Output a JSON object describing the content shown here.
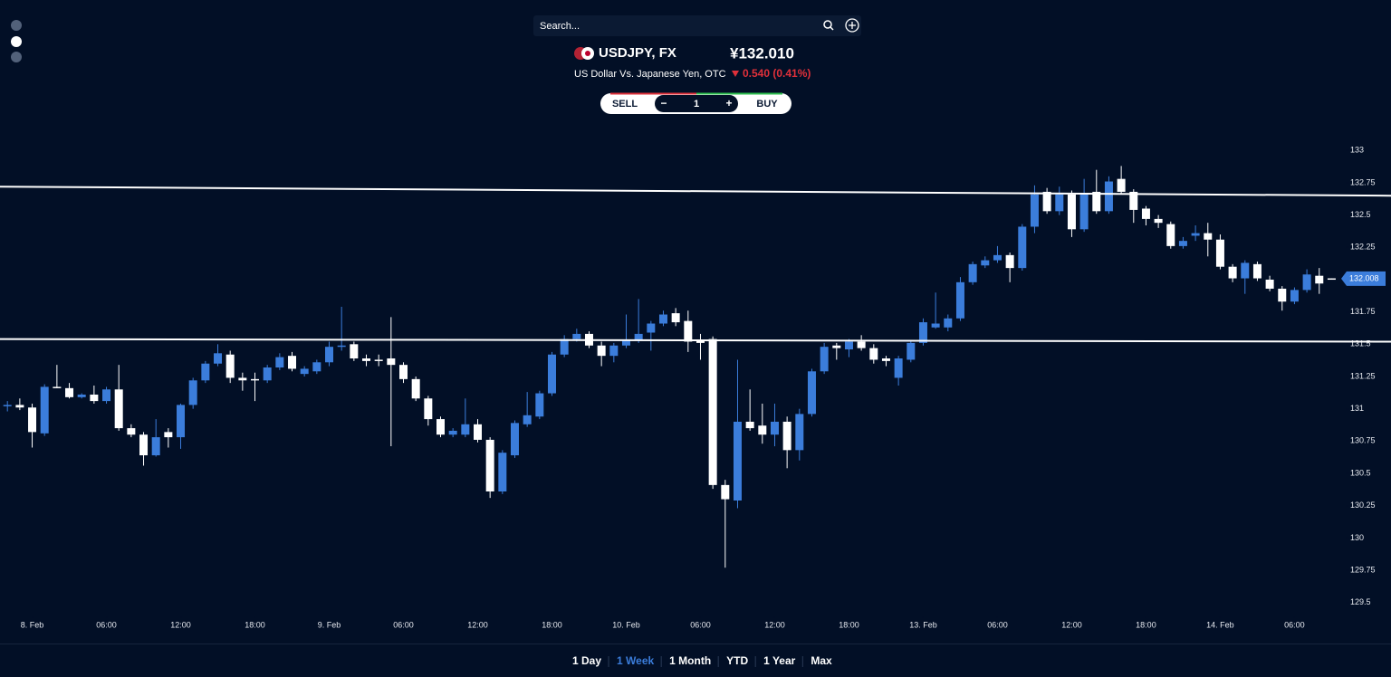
{
  "header": {
    "search_placeholder": "Search...",
    "symbol": "USDJPY, FX",
    "price": "¥132.010",
    "description": "US Dollar Vs. Japanese Yen, OTC",
    "change": "0.540 (0.41%)"
  },
  "trade": {
    "sell": "SELL",
    "minus": "−",
    "quantity": "1",
    "plus": "+",
    "buy": "BUY"
  },
  "ranges": {
    "items": [
      "1 Day",
      "1 Week",
      "1 Month",
      "YTD",
      "1 Year",
      "Max"
    ],
    "active": 1
  },
  "chart_data": {
    "type": "candlestick",
    "x": [
      -2,
      -1,
      0,
      1,
      2,
      3,
      4,
      5,
      6,
      7,
      8,
      9,
      10,
      11,
      12,
      13,
      14,
      15,
      16,
      17,
      18,
      19,
      20,
      21,
      22,
      23,
      24,
      25,
      26,
      27,
      28,
      29,
      30,
      31,
      32,
      33,
      34,
      35,
      36,
      37,
      38,
      39,
      40,
      41,
      42,
      43,
      44,
      45,
      46,
      47,
      48,
      49,
      50,
      51,
      52,
      53,
      54,
      55,
      56,
      57,
      58,
      59,
      60,
      61,
      62,
      63,
      64,
      65,
      66,
      67,
      68,
      69,
      70,
      71,
      72,
      73,
      74,
      75,
      76,
      77,
      78,
      79,
      80,
      81,
      82,
      83,
      84,
      85,
      86,
      87,
      88,
      89,
      90,
      91,
      92,
      93,
      94,
      95,
      96,
      97,
      98,
      99,
      100,
      101,
      102,
      103,
      104,
      105
    ],
    "open": [
      131.02,
      131.03,
      131.01,
      130.81,
      131.17,
      131.16,
      131.09,
      131.11,
      131.06,
      131.15,
      130.85,
      130.8,
      130.64,
      130.82,
      130.78,
      131.03,
      131.22,
      131.35,
      131.42,
      131.24,
      131.23,
      131.22,
      131.32,
      131.41,
      131.27,
      131.29,
      131.36,
      131.48,
      131.5,
      131.39,
      131.38,
      131.39,
      131.34,
      131.23,
      131.08,
      130.92,
      130.8,
      130.8,
      130.88,
      130.76,
      130.36,
      130.64,
      130.88,
      130.94,
      131.12,
      131.42,
      131.54,
      131.58,
      131.49,
      131.41,
      131.49,
      131.53,
      131.59,
      131.66,
      131.74,
      131.68,
      131.53,
      131.54,
      130.41,
      130.29,
      130.9,
      130.87,
      130.8,
      130.9,
      130.68,
      130.96,
      131.29,
      131.49,
      131.46,
      131.52,
      131.47,
      131.39,
      131.24,
      131.38,
      131.51,
      131.63,
      131.63,
      131.7,
      131.98,
      132.11,
      132.15,
      132.19,
      132.09,
      132.41,
      132.68,
      132.53,
      132.66,
      132.39,
      132.68,
      132.53,
      132.78,
      132.68,
      132.55,
      132.47,
      132.43,
      132.26,
      132.34,
      132.36,
      132.31,
      132.1,
      132.01,
      132.12,
      132.0,
      131.93,
      131.83,
      131.92,
      132.03,
      132.01
    ],
    "high": [
      131.06,
      131.08,
      131.04,
      131.19,
      131.34,
      131.2,
      131.12,
      131.18,
      131.17,
      131.34,
      130.88,
      130.82,
      130.92,
      130.85,
      131.04,
      131.24,
      131.37,
      131.5,
      131.45,
      131.28,
      131.28,
      131.34,
      131.43,
      131.44,
      131.33,
      131.38,
      131.52,
      131.79,
      131.52,
      131.42,
      131.42,
      131.71,
      131.36,
      131.25,
      131.1,
      130.94,
      130.85,
      131.08,
      130.92,
      130.78,
      130.68,
      130.91,
      131.13,
      131.14,
      131.44,
      131.57,
      131.62,
      131.6,
      131.52,
      131.51,
      131.73,
      131.85,
      131.68,
      131.76,
      131.78,
      131.76,
      131.58,
      131.56,
      130.45,
      131.38,
      131.15,
      131.04,
      131.04,
      130.94,
      131.0,
      131.31,
      131.51,
      131.51,
      131.54,
      131.57,
      131.5,
      131.41,
      131.41,
      131.53,
      131.7,
      131.9,
      131.73,
      132.02,
      132.14,
      132.18,
      132.26,
      132.21,
      132.43,
      132.73,
      132.71,
      132.72,
      132.69,
      132.78,
      132.85,
      132.8,
      132.88,
      132.7,
      132.57,
      132.5,
      132.45,
      132.33,
      132.42,
      132.44,
      132.35,
      132.12,
      132.15,
      132.14,
      132.03,
      131.95,
      131.94,
      132.08,
      132.09,
      132.01
    ],
    "low": [
      130.98,
      130.99,
      130.7,
      130.79,
      131.16,
      131.08,
      131.08,
      131.04,
      131.04,
      130.83,
      130.78,
      130.56,
      130.63,
      130.7,
      130.69,
      131.0,
      131.2,
      131.33,
      131.2,
      131.14,
      131.06,
      131.2,
      131.3,
      131.29,
      131.25,
      131.27,
      131.33,
      131.45,
      131.37,
      131.33,
      131.33,
      130.71,
      131.2,
      131.06,
      130.87,
      130.78,
      130.78,
      130.78,
      130.74,
      130.31,
      130.34,
      130.62,
      130.86,
      130.92,
      131.1,
      131.4,
      131.52,
      131.47,
      131.33,
      131.36,
      131.47,
      131.51,
      131.45,
      131.64,
      131.64,
      131.44,
      131.38,
      130.38,
      129.77,
      130.23,
      130.83,
      130.73,
      130.71,
      130.54,
      130.6,
      130.94,
      131.27,
      131.38,
      131.4,
      131.45,
      131.35,
      131.33,
      131.18,
      131.36,
      131.49,
      131.62,
      131.6,
      131.68,
      131.96,
      132.09,
      132.13,
      131.98,
      132.07,
      132.36,
      132.51,
      132.5,
      132.33,
      132.37,
      132.51,
      132.51,
      132.66,
      132.44,
      132.42,
      132.4,
      132.24,
      132.24,
      132.3,
      132.18,
      132.08,
      131.98,
      131.89,
      131.99,
      131.91,
      131.76,
      131.81,
      131.9,
      131.89,
      132.0
    ],
    "close": [
      131.03,
      131.01,
      130.82,
      131.17,
      131.16,
      131.09,
      131.11,
      131.06,
      131.15,
      130.85,
      130.8,
      130.64,
      130.78,
      130.78,
      131.03,
      131.22,
      131.35,
      131.43,
      131.24,
      131.22,
      131.22,
      131.32,
      131.4,
      131.31,
      131.31,
      131.36,
      131.48,
      131.49,
      131.39,
      131.37,
      131.37,
      131.34,
      131.23,
      131.08,
      130.92,
      130.8,
      130.83,
      130.88,
      130.76,
      130.36,
      130.66,
      130.89,
      130.95,
      131.12,
      131.42,
      131.54,
      131.58,
      131.49,
      131.41,
      131.49,
      131.53,
      131.58,
      131.66,
      131.73,
      131.67,
      131.52,
      131.51,
      130.41,
      130.3,
      130.9,
      130.85,
      130.8,
      130.9,
      130.68,
      130.96,
      131.29,
      131.48,
      131.47,
      131.52,
      131.47,
      131.38,
      131.37,
      131.39,
      131.51,
      131.67,
      131.66,
      131.7,
      131.98,
      132.12,
      132.15,
      132.19,
      132.09,
      132.41,
      132.66,
      132.53,
      132.66,
      132.39,
      132.66,
      132.53,
      132.76,
      132.68,
      132.54,
      132.47,
      132.44,
      132.26,
      132.3,
      132.36,
      132.31,
      132.1,
      132.01,
      132.13,
      132.01,
      131.93,
      131.83,
      131.92,
      132.04,
      131.97,
      132.008
    ],
    "up_color": "#3b7ddb",
    "down_color": "#ffffff",
    "last_price": 132.008,
    "trendlines": [
      {
        "x": [
          -2.6,
          109.8
        ],
        "y": [
          132.72,
          132.65
        ]
      },
      {
        "x": [
          -2.6,
          109.8
        ],
        "y": [
          131.54,
          131.52
        ]
      }
    ],
    "xlim": [
      -2.6,
      105.7
    ],
    "ylim": [
      129.4,
      133.1
    ],
    "yticks": [
      129.5,
      129.75,
      130,
      130.25,
      130.5,
      130.75,
      131,
      131.25,
      131.5,
      131.75,
      132,
      132.25,
      132.5,
      132.75,
      133
    ],
    "xticks": [
      {
        "value": 0,
        "label": "8. Feb"
      },
      {
        "value": 6,
        "label": "06:00"
      },
      {
        "value": 12,
        "label": "12:00"
      },
      {
        "value": 18,
        "label": "18:00"
      },
      {
        "value": 24,
        "label": "9. Feb"
      },
      {
        "value": 30,
        "label": "06:00"
      },
      {
        "value": 36,
        "label": "12:00"
      },
      {
        "value": 42,
        "label": "18:00"
      },
      {
        "value": 48,
        "label": "10. Feb"
      },
      {
        "value": 54,
        "label": "06:00"
      },
      {
        "value": 60,
        "label": "12:00"
      },
      {
        "value": 66,
        "label": "18:00"
      },
      {
        "value": 72,
        "label": "13. Feb"
      },
      {
        "value": 78,
        "label": "06:00"
      },
      {
        "value": 84,
        "label": "12:00"
      },
      {
        "value": 90,
        "label": "18:00"
      },
      {
        "value": 96,
        "label": "14. Feb"
      },
      {
        "value": 102,
        "label": "06:00"
      }
    ],
    "grid": false
  }
}
